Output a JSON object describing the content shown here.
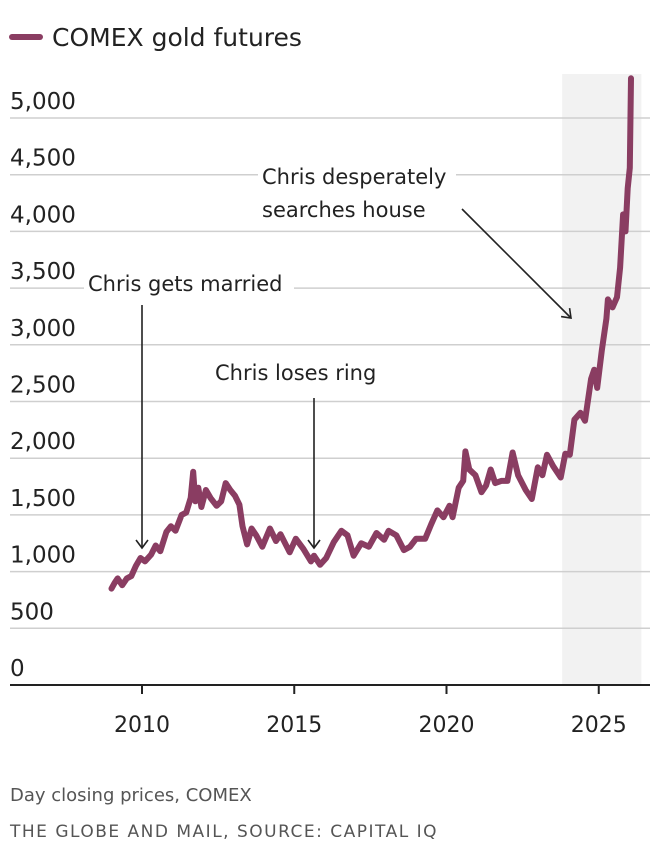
{
  "chart_data": {
    "type": "line",
    "legend": {
      "position": "top-left",
      "entries": [
        {
          "label": "COMEX gold futures",
          "color": "#8a3d62"
        }
      ]
    },
    "y_ticks": [
      0,
      500,
      1000,
      1500,
      2000,
      2500,
      3000,
      3500,
      4000,
      4500,
      5000
    ],
    "y_tick_labels": [
      "0",
      "500",
      "1,000",
      "1,500",
      "2,000",
      "2,500",
      "3,000",
      "3,500",
      "4,000",
      "4,500",
      "5,000"
    ],
    "x_ticks": [
      2010,
      2015,
      2020,
      2025
    ],
    "x_tick_labels": [
      "2010",
      "2015",
      "2020",
      "2025"
    ],
    "xlim": [
      2008,
      2026.8
    ],
    "ylim": [
      0,
      5300
    ],
    "grid": "horizontal",
    "shaded_region": {
      "x": [
        2023.8,
        2026.4
      ],
      "color": "#f2f2f2"
    },
    "series": [
      {
        "name": "COMEX gold futures",
        "color": "#8a3d62",
        "points": [
          [
            2009.0,
            850
          ],
          [
            2009.1,
            900
          ],
          [
            2009.2,
            940
          ],
          [
            2009.35,
            880
          ],
          [
            2009.5,
            940
          ],
          [
            2009.65,
            960
          ],
          [
            2009.8,
            1050
          ],
          [
            2009.95,
            1120
          ],
          [
            2010.1,
            1090
          ],
          [
            2010.3,
            1150
          ],
          [
            2010.45,
            1230
          ],
          [
            2010.6,
            1180
          ],
          [
            2010.8,
            1350
          ],
          [
            2010.95,
            1400
          ],
          [
            2011.1,
            1360
          ],
          [
            2011.3,
            1500
          ],
          [
            2011.45,
            1520
          ],
          [
            2011.6,
            1650
          ],
          [
            2011.68,
            1880
          ],
          [
            2011.75,
            1620
          ],
          [
            2011.85,
            1740
          ],
          [
            2011.95,
            1570
          ],
          [
            2012.1,
            1720
          ],
          [
            2012.25,
            1650
          ],
          [
            2012.45,
            1580
          ],
          [
            2012.6,
            1620
          ],
          [
            2012.75,
            1780
          ],
          [
            2012.9,
            1720
          ],
          [
            2013.05,
            1670
          ],
          [
            2013.2,
            1590
          ],
          [
            2013.3,
            1400
          ],
          [
            2013.45,
            1240
          ],
          [
            2013.6,
            1380
          ],
          [
            2013.75,
            1320
          ],
          [
            2013.95,
            1220
          ],
          [
            2014.2,
            1380
          ],
          [
            2014.4,
            1270
          ],
          [
            2014.55,
            1330
          ],
          [
            2014.85,
            1170
          ],
          [
            2015.05,
            1290
          ],
          [
            2015.3,
            1200
          ],
          [
            2015.55,
            1090
          ],
          [
            2015.65,
            1140
          ],
          [
            2015.85,
            1060
          ],
          [
            2016.05,
            1120
          ],
          [
            2016.3,
            1260
          ],
          [
            2016.55,
            1360
          ],
          [
            2016.75,
            1320
          ],
          [
            2016.95,
            1140
          ],
          [
            2017.2,
            1250
          ],
          [
            2017.45,
            1220
          ],
          [
            2017.7,
            1340
          ],
          [
            2017.95,
            1280
          ],
          [
            2018.1,
            1360
          ],
          [
            2018.35,
            1320
          ],
          [
            2018.6,
            1190
          ],
          [
            2018.8,
            1220
          ],
          [
            2019.0,
            1290
          ],
          [
            2019.3,
            1290
          ],
          [
            2019.5,
            1420
          ],
          [
            2019.7,
            1540
          ],
          [
            2019.9,
            1480
          ],
          [
            2020.1,
            1580
          ],
          [
            2020.2,
            1480
          ],
          [
            2020.4,
            1740
          ],
          [
            2020.55,
            1800
          ],
          [
            2020.62,
            2060
          ],
          [
            2020.75,
            1900
          ],
          [
            2020.95,
            1850
          ],
          [
            2021.15,
            1700
          ],
          [
            2021.3,
            1760
          ],
          [
            2021.45,
            1900
          ],
          [
            2021.6,
            1780
          ],
          [
            2021.8,
            1800
          ],
          [
            2022.0,
            1800
          ],
          [
            2022.17,
            2050
          ],
          [
            2022.35,
            1850
          ],
          [
            2022.6,
            1720
          ],
          [
            2022.8,
            1640
          ],
          [
            2023.0,
            1920
          ],
          [
            2023.15,
            1850
          ],
          [
            2023.3,
            2030
          ],
          [
            2023.5,
            1930
          ],
          [
            2023.75,
            1830
          ],
          [
            2023.9,
            2040
          ],
          [
            2024.05,
            2030
          ],
          [
            2024.2,
            2340
          ],
          [
            2024.4,
            2400
          ],
          [
            2024.55,
            2330
          ],
          [
            2024.75,
            2700
          ],
          [
            2024.85,
            2780
          ],
          [
            2024.95,
            2620
          ],
          [
            2025.1,
            2950
          ],
          [
            2025.25,
            3230
          ],
          [
            2025.3,
            3400
          ],
          [
            2025.45,
            3330
          ],
          [
            2025.6,
            3420
          ],
          [
            2025.7,
            3680
          ],
          [
            2025.8,
            4150
          ],
          [
            2025.88,
            4000
          ],
          [
            2025.95,
            4380
          ],
          [
            2026.02,
            4560
          ],
          [
            2026.06,
            5350
          ]
        ]
      }
    ],
    "annotations": [
      {
        "text": "Chris gets married",
        "x": 2010.0,
        "y": 1120
      },
      {
        "text": "Chris loses ring",
        "x": 2015.7,
        "y": 1120
      },
      {
        "text_lines": [
          "Chris desperately",
          "searches house"
        ],
        "x": 2024.4,
        "y": 3250
      }
    ]
  },
  "footer": {
    "note": "Day closing prices, COMEX",
    "source": "THE GLOBE AND MAIL, SOURCE: CAPITAL IQ"
  }
}
